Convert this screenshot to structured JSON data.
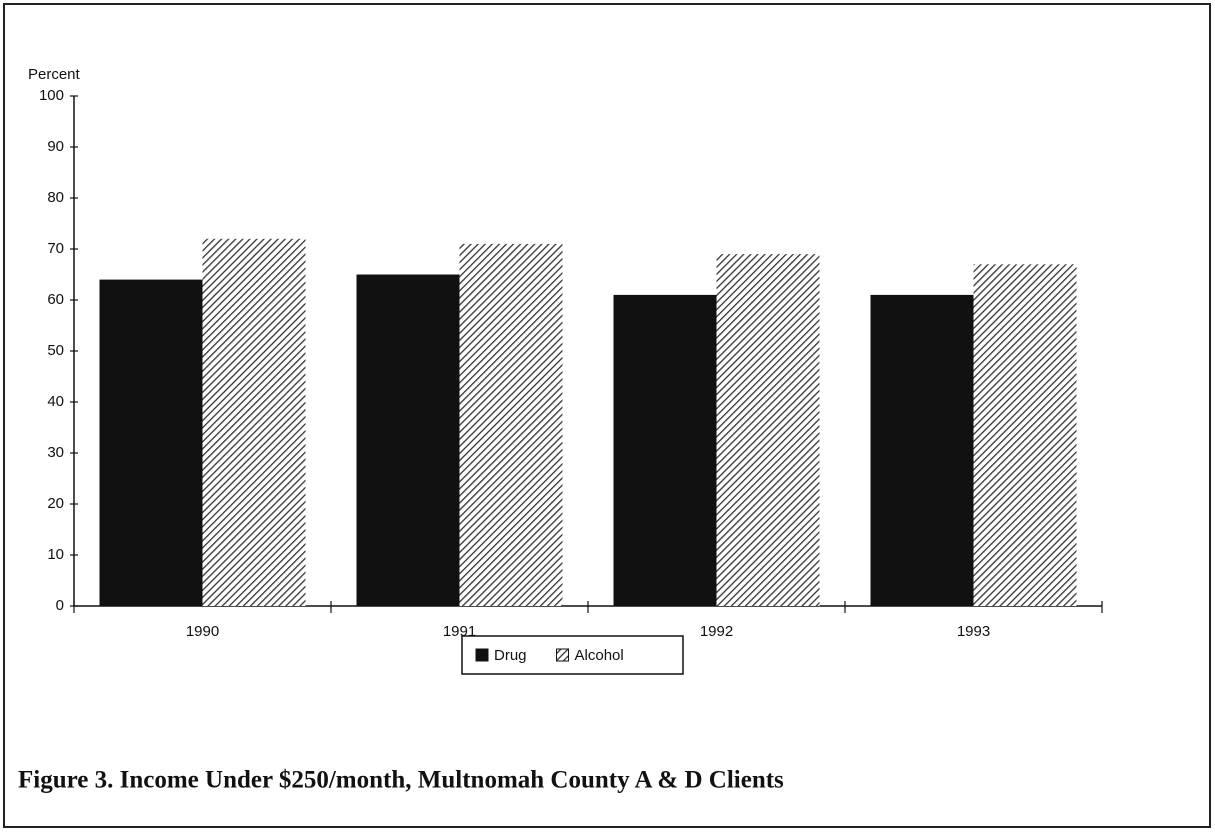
{
  "chart_data": {
    "type": "bar",
    "title": "Figure 3.  Income Under $250/month, Multnomah County A & D Clients",
    "y_label": "Percent",
    "categories": [
      "1990",
      "1991",
      "1992",
      "1993"
    ],
    "series": [
      {
        "name": "Drug",
        "color": "#111111",
        "values": [
          64,
          65,
          61,
          61
        ]
      },
      {
        "name": "Alcohol",
        "color": "#333333",
        "pattern": "hatch",
        "values": [
          72,
          71,
          69,
          67
        ]
      }
    ],
    "ylim": [
      0,
      100
    ],
    "yticks": [
      0,
      10,
      20,
      30,
      40,
      50,
      60,
      70,
      80,
      90,
      100
    ],
    "grid": false,
    "legend": "bottom"
  }
}
